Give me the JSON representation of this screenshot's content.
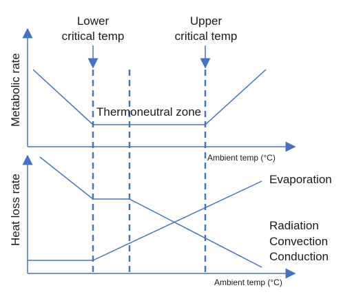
{
  "labels": {
    "lower_critical": [
      "Lower",
      "critical temp"
    ],
    "upper_critical": [
      "Upper",
      "critical temp"
    ],
    "thermoneutral": "Thermoneutral zone",
    "top_y_axis": "Metabolic rate",
    "top_x_axis": "Ambient temp (°C)",
    "bottom_y_axis": "Heat loss rate",
    "bottom_x_axis": "Ambient temp (°C)",
    "evaporation": "Evaporation",
    "radiation": "Radiation",
    "convection": "Convection",
    "conduction": "Conduction"
  },
  "colors": {
    "line": "#4472c4",
    "text": "#1a1a1a"
  }
}
